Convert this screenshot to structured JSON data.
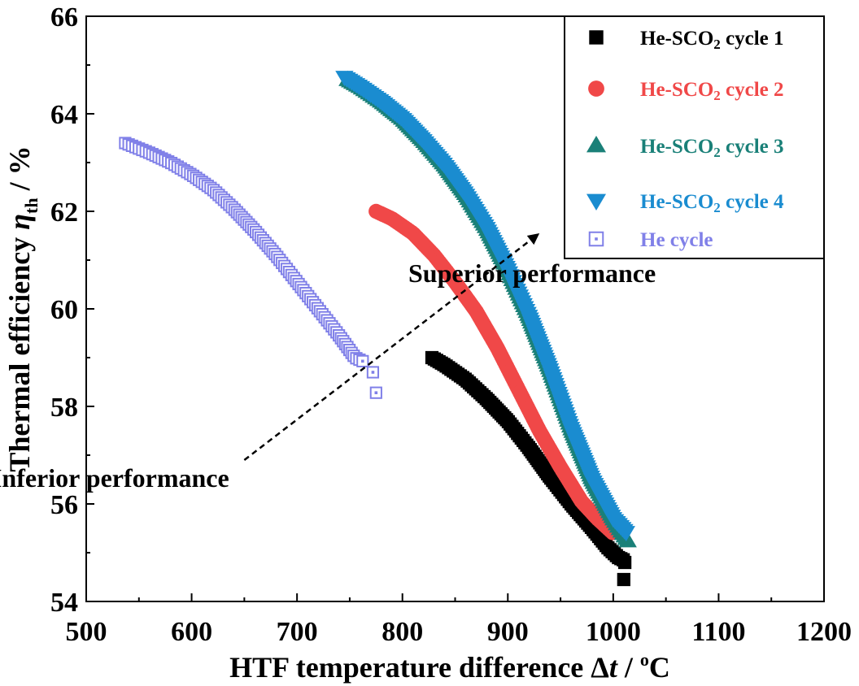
{
  "chart_data": {
    "type": "scatter",
    "title": "",
    "xlabel": {
      "main": "HTF temperature difference ",
      "symbol": "Δ",
      "italic": "t",
      "unit_pre": " / ",
      "sup": "o",
      "unit": "C"
    },
    "ylabel": {
      "main": "Thermal efficiency ",
      "symbol": "η",
      "sub": "th",
      "unit": " / %"
    },
    "xlim": [
      500,
      1200
    ],
    "ylim": [
      54,
      66
    ],
    "xticks": [
      500,
      600,
      700,
      800,
      900,
      1000,
      1100,
      1200
    ],
    "yticks": [
      54,
      56,
      58,
      60,
      62,
      64,
      66
    ],
    "legend_position": "top-right",
    "series": [
      {
        "name": "He-SCO2 cycle 1",
        "label_parts": [
          "He-SCO",
          "2",
          " cycle 1"
        ],
        "marker": "square-filled",
        "color": "#000000",
        "curve": {
          "x": [
            828,
            840,
            860,
            880,
            900,
            920,
            940,
            960,
            980,
            995,
            1005,
            1010
          ],
          "y": [
            59.0,
            58.85,
            58.55,
            58.15,
            57.7,
            57.15,
            56.55,
            56.0,
            55.5,
            55.1,
            54.9,
            54.85
          ]
        },
        "extra_points": [
          [
            1010,
            54.45
          ],
          [
            1011,
            54.8
          ]
        ]
      },
      {
        "name": "He-SCO2 cycle 2",
        "label_parts": [
          "He-SCO",
          "2",
          " cycle 2"
        ],
        "marker": "circle-filled",
        "color": "#f04848",
        "curve": {
          "x": [
            775,
            790,
            810,
            830,
            850,
            870,
            890,
            910,
            930,
            950,
            970,
            985,
            1000
          ],
          "y": [
            62.0,
            61.85,
            61.55,
            61.1,
            60.55,
            59.95,
            59.2,
            58.35,
            57.5,
            56.75,
            56.05,
            55.7,
            55.4
          ]
        },
        "extra_points": []
      },
      {
        "name": "He-SCO2 cycle 3",
        "label_parts": [
          "He-SCO",
          "2",
          " cycle 3"
        ],
        "marker": "triangle-up",
        "color": "#1a8078",
        "curve": {
          "x": [
            748,
            760,
            780,
            800,
            820,
            840,
            860,
            880,
            900,
            920,
            940,
            960,
            980,
            1000,
            1015
          ],
          "y": [
            64.7,
            64.55,
            64.25,
            63.9,
            63.45,
            62.95,
            62.35,
            61.65,
            60.8,
            59.85,
            58.75,
            57.55,
            56.5,
            55.7,
            55.2
          ]
        },
        "extra_points": []
      },
      {
        "name": "He-SCO2 cycle 4",
        "label_parts": [
          "He-SCO",
          "2",
          " cycle 4"
        ],
        "marker": "triangle-down",
        "color": "#1a8cd0",
        "curve": {
          "x": [
            745,
            760,
            780,
            800,
            820,
            840,
            860,
            880,
            900,
            920,
            940,
            960,
            980,
            1000,
            1013
          ],
          "y": [
            64.75,
            64.55,
            64.25,
            63.9,
            63.45,
            62.95,
            62.35,
            61.65,
            60.8,
            59.85,
            58.75,
            57.55,
            56.5,
            55.7,
            55.4
          ]
        },
        "extra_points": []
      },
      {
        "name": "He  cycle",
        "label_parts": [
          "He  cycle",
          "",
          ""
        ],
        "marker": "square-open-dot",
        "color": "#8080e8",
        "curve": {
          "x": [
            537,
            560,
            580,
            600,
            620,
            640,
            660,
            680,
            700,
            720,
            740,
            755,
            765
          ],
          "y": [
            63.4,
            63.2,
            63.0,
            62.75,
            62.45,
            62.05,
            61.6,
            61.1,
            60.55,
            60.0,
            59.45,
            59.0,
            58.9
          ]
        },
        "extra_points": [
          [
            772,
            58.7
          ],
          [
            775,
            58.28
          ]
        ]
      }
    ],
    "annotations": [
      {
        "text": "Superior performance",
        "x": 923,
        "y": 60.55
      },
      {
        "text": "Inferior performance",
        "x": 523,
        "y": 56.35
      }
    ],
    "trend_arrow": {
      "from": [
        650,
        56.9
      ],
      "to": [
        930,
        61.55
      ],
      "style": "dashed"
    }
  }
}
